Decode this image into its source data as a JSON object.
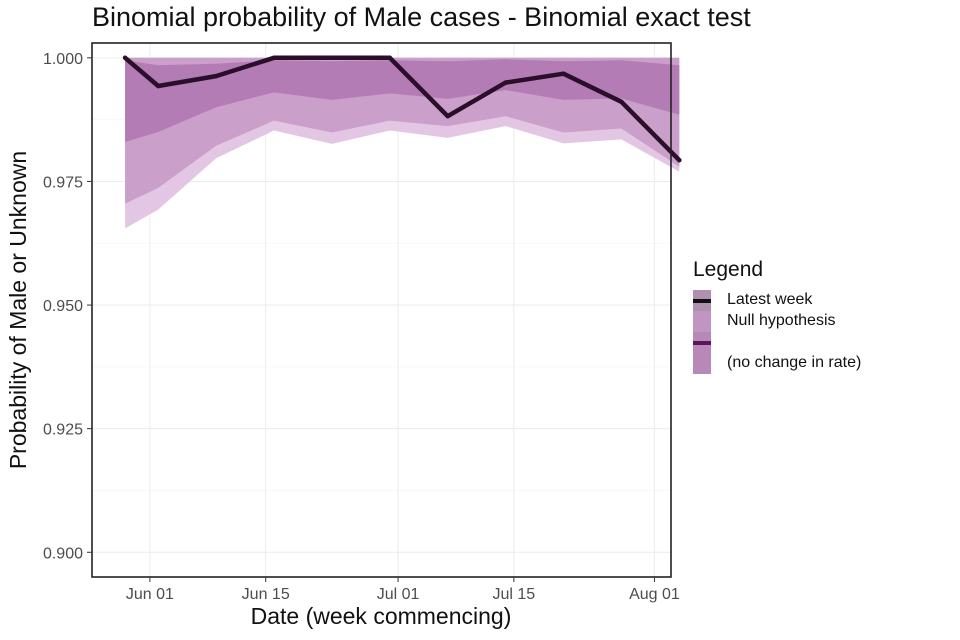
{
  "chart_data": {
    "type": "line",
    "title": "Binomial probability of Male cases - Binomial exact test",
    "xlabel": "Date (week commencing)",
    "ylabel": "Probability of Male or Unknown",
    "ylim": [
      0.895,
      1.003
    ],
    "xlim_days": [
      -7,
      63
    ],
    "y_ticks": [
      0.9,
      0.925,
      0.95,
      0.975,
      1.0
    ],
    "y_tick_labels": [
      "0.900",
      "0.925",
      "0.950",
      "0.975",
      "1.000"
    ],
    "x_ticks": [
      {
        "label": "Jun 01",
        "day": 0
      },
      {
        "label": "Jun 15",
        "day": 14
      },
      {
        "label": "Jul 01",
        "day": 30
      },
      {
        "label": "Jul 15",
        "day": 44
      },
      {
        "label": "Aug 01",
        "day": 61
      }
    ],
    "x_days": [
      -3,
      1,
      8,
      15,
      22,
      29,
      36,
      43,
      50,
      57,
      64
    ],
    "bands": [
      {
        "name": "outer",
        "lower": [
          0.9655,
          0.9693,
          0.9797,
          0.9853,
          0.9826,
          0.9853,
          0.9838,
          0.9862,
          0.9827,
          0.9835,
          0.977
        ],
        "upper": [
          1.0,
          1.0,
          1.0,
          1.0,
          1.0,
          1.0,
          1.0,
          1.0,
          1.0,
          1.0,
          1.0
        ],
        "color": "#e3c6e3"
      },
      {
        "name": "middle",
        "lower": [
          0.9705,
          0.9737,
          0.9822,
          0.9873,
          0.9849,
          0.9873,
          0.9862,
          0.9882,
          0.9849,
          0.9857,
          0.978
        ],
        "upper": [
          1.0,
          1.0,
          1.0,
          1.0,
          1.0,
          1.0,
          1.0,
          1.0,
          1.0,
          1.0,
          1.0
        ],
        "color": "#ca9fca"
      },
      {
        "name": "inner",
        "lower": [
          0.983,
          0.985,
          0.99,
          0.993,
          0.9915,
          0.9928,
          0.9917,
          0.9935,
          0.9915,
          0.9918,
          0.9885
        ],
        "upper": [
          0.9995,
          0.9985,
          0.9988,
          0.9995,
          0.9993,
          0.9995,
          0.9993,
          0.9997,
          0.9993,
          0.9995,
          0.9985
        ],
        "color": "#b47cb4"
      }
    ],
    "series": [
      {
        "name": "Latest week",
        "values": [
          1.0,
          0.9943,
          0.9963,
          1.0,
          1.0,
          1.0,
          0.9882,
          0.995,
          0.9968,
          0.9911,
          0.9793
        ],
        "color": "#2a0f2a"
      }
    ],
    "legend": {
      "title": "Legend",
      "position": "right",
      "entries": [
        {
          "label": "Latest week",
          "swatch": "#b090b0",
          "line": "#111111"
        },
        {
          "label": "Null hypothesis",
          "swatch": "#c294c2"
        },
        {
          "label": "",
          "swatch": "#b889b8",
          "line": "#5b165b"
        },
        {
          "label": "(no change in rate)",
          "swatch": "#b889b8"
        }
      ]
    },
    "grid": true
  }
}
